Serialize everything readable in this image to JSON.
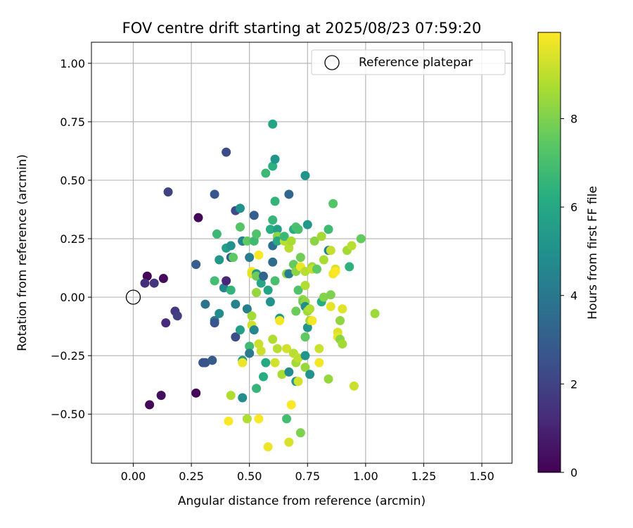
{
  "chart_data": {
    "type": "scatter",
    "title": "FOV centre drift starting at 2025/08/23 07:59:20",
    "xlabel": "Angular distance from reference (arcmin)",
    "ylabel": "Rotation from reference (arcmin)",
    "xlim": [
      -0.18,
      1.63
    ],
    "ylim": [
      -0.71,
      1.09
    ],
    "xticks": [
      "0.00",
      "0.25",
      "0.50",
      "0.75",
      "1.00",
      "1.25",
      "1.50"
    ],
    "xtick_values": [
      0,
      0.25,
      0.5,
      0.75,
      1.0,
      1.25,
      1.5
    ],
    "yticks": [
      "−0.50",
      "−0.25",
      "0.00",
      "0.25",
      "0.50",
      "0.75",
      "1.00"
    ],
    "ytick_values": [
      -0.5,
      -0.25,
      0,
      0.25,
      0.5,
      0.75,
      1.0
    ],
    "grid": true,
    "legend": {
      "position": "top-right",
      "label": "Reference platepar"
    },
    "reference_point": {
      "x": 0,
      "y": 0
    },
    "colorbar": {
      "label": "Hours from first FF file",
      "range": [
        0,
        9.95
      ],
      "ticks": [
        "0",
        "2",
        "4",
        "6",
        "8"
      ],
      "tick_values": [
        0,
        2,
        4,
        6,
        8
      ],
      "colormap": "viridis"
    },
    "points": [
      {
        "x": 0.06,
        "y": 0.09,
        "h": 0.1
      },
      {
        "x": 0.05,
        "y": 0.06,
        "h": 1.3
      },
      {
        "x": 0.09,
        "y": 0.06,
        "h": 1.5
      },
      {
        "x": 0.13,
        "y": 0.08,
        "h": 0.3
      },
      {
        "x": 0.18,
        "y": -0.06,
        "h": 1.6
      },
      {
        "x": 0.19,
        "y": -0.08,
        "h": 1.9
      },
      {
        "x": 0.14,
        "y": -0.11,
        "h": 1.2
      },
      {
        "x": 0.07,
        "y": -0.46,
        "h": 0.2
      },
      {
        "x": 0.12,
        "y": -0.42,
        "h": 0.4
      },
      {
        "x": 0.27,
        "y": -0.41,
        "h": 0.1
      },
      {
        "x": 0.15,
        "y": 0.45,
        "h": 2.0
      },
      {
        "x": 0.28,
        "y": 0.34,
        "h": 0.1
      },
      {
        "x": 0.27,
        "y": 0.14,
        "h": 3.0
      },
      {
        "x": 0.31,
        "y": -0.03,
        "h": 3.8
      },
      {
        "x": 0.3,
        "y": -0.28,
        "h": 2.7
      },
      {
        "x": 0.31,
        "y": -0.28,
        "h": 2.6
      },
      {
        "x": 0.34,
        "y": -0.27,
        "h": 2.9
      },
      {
        "x": 0.35,
        "y": 0.44,
        "h": 2.7
      },
      {
        "x": 0.4,
        "y": 0.62,
        "h": 2.3
      },
      {
        "x": 0.36,
        "y": 0.27,
        "h": 6.7
      },
      {
        "x": 0.37,
        "y": 0.16,
        "h": 5.3
      },
      {
        "x": 0.35,
        "y": 0.07,
        "h": 6.9
      },
      {
        "x": 0.39,
        "y": 0.04,
        "h": 4.5
      },
      {
        "x": 0.4,
        "y": 0.07,
        "h": 1.1
      },
      {
        "x": 0.37,
        "y": -0.07,
        "h": 4.8
      },
      {
        "x": 0.35,
        "y": -0.1,
        "h": 4.1
      },
      {
        "x": 0.35,
        "y": -0.11,
        "h": 2.7
      },
      {
        "x": 0.4,
        "y": 0.21,
        "h": 5.6
      },
      {
        "x": 0.42,
        "y": 0.22,
        "h": 5.0
      },
      {
        "x": 0.42,
        "y": 0.17,
        "h": 3.0
      },
      {
        "x": 0.43,
        "y": 0.17,
        "h": 7.5
      },
      {
        "x": 0.42,
        "y": 0.03,
        "h": 6.5
      },
      {
        "x": 0.44,
        "y": 0.37,
        "h": 2.3
      },
      {
        "x": 0.46,
        "y": 0.38,
        "h": 5.0
      },
      {
        "x": 0.46,
        "y": 0.3,
        "h": 7.3
      },
      {
        "x": 0.47,
        "y": 0.24,
        "h": 1.1
      },
      {
        "x": 0.47,
        "y": 0.24,
        "h": 4.4
      },
      {
        "x": 0.49,
        "y": 0.24,
        "h": 7.5
      },
      {
        "x": 0.44,
        "y": -0.03,
        "h": 4.4
      },
      {
        "x": 0.44,
        "y": -0.17,
        "h": 2.4
      },
      {
        "x": 0.46,
        "y": -0.14,
        "h": 5.6
      },
      {
        "x": 0.47,
        "y": -0.27,
        "h": 5.5
      },
      {
        "x": 0.47,
        "y": -0.28,
        "h": 9.7
      },
      {
        "x": 0.47,
        "y": -0.43,
        "h": 4.8
      },
      {
        "x": 0.42,
        "y": -0.42,
        "h": 8.8
      },
      {
        "x": 0.41,
        "y": -0.53,
        "h": 9.9
      },
      {
        "x": 0.49,
        "y": -0.52,
        "h": 8.8
      },
      {
        "x": 0.5,
        "y": 0.17,
        "h": 4.2
      },
      {
        "x": 0.49,
        "y": -0.05,
        "h": 4.3
      },
      {
        "x": 0.5,
        "y": -0.21,
        "h": 6.8
      },
      {
        "x": 0.5,
        "y": -0.24,
        "h": 4.1
      },
      {
        "x": 0.51,
        "y": 0.11,
        "h": 9.8
      },
      {
        "x": 0.51,
        "y": 0.1,
        "h": 9.5
      },
      {
        "x": 0.51,
        "y": -0.08,
        "h": 8.6
      },
      {
        "x": 0.51,
        "y": -0.12,
        "h": 9.3
      },
      {
        "x": 0.52,
        "y": -0.14,
        "h": 4.6
      },
      {
        "x": 0.52,
        "y": 0.35,
        "h": 3.0
      },
      {
        "x": 0.52,
        "y": 0.24,
        "h": 6.8
      },
      {
        "x": 0.53,
        "y": 0.27,
        "h": 7.2
      },
      {
        "x": 0.53,
        "y": 0.1,
        "h": 5.1
      },
      {
        "x": 0.53,
        "y": 0.09,
        "h": 7.7
      },
      {
        "x": 0.54,
        "y": 0.18,
        "h": 9.9
      },
      {
        "x": 0.53,
        "y": 0.02,
        "h": 8.4
      },
      {
        "x": 0.54,
        "y": -0.2,
        "h": 9.2
      },
      {
        "x": 0.53,
        "y": -0.39,
        "h": 6.6
      },
      {
        "x": 0.54,
        "y": -0.52,
        "h": 9.9
      },
      {
        "x": 0.55,
        "y": 0.06,
        "h": 5.9
      },
      {
        "x": 0.55,
        "y": -0.23,
        "h": 9.2
      },
      {
        "x": 0.56,
        "y": 0.09,
        "h": 3.3
      },
      {
        "x": 0.56,
        "y": -0.34,
        "h": 6.2
      },
      {
        "x": 0.57,
        "y": -0.28,
        "h": 6.0
      },
      {
        "x": 0.57,
        "y": 0.53,
        "h": 6.7
      },
      {
        "x": 0.58,
        "y": 0.03,
        "h": 5.8
      },
      {
        "x": 0.58,
        "y": -0.64,
        "h": 9.7
      },
      {
        "x": 0.59,
        "y": 0.29,
        "h": 6.2
      },
      {
        "x": 0.59,
        "y": -0.02,
        "h": 5.1
      },
      {
        "x": 0.6,
        "y": 0.74,
        "h": 5.8
      },
      {
        "x": 0.6,
        "y": 0.56,
        "h": 6.3
      },
      {
        "x": 0.61,
        "y": 0.59,
        "h": 5.2
      },
      {
        "x": 0.6,
        "y": 0.33,
        "h": 6.6
      },
      {
        "x": 0.6,
        "y": 0.22,
        "h": 3.6
      },
      {
        "x": 0.6,
        "y": 0.15,
        "h": 3.5
      },
      {
        "x": 0.61,
        "y": 0.41,
        "h": 6.5
      },
      {
        "x": 0.61,
        "y": 0.07,
        "h": 7.0
      },
      {
        "x": 0.6,
        "y": -0.18,
        "h": 8.8
      },
      {
        "x": 0.61,
        "y": -0.28,
        "h": 9.3
      },
      {
        "x": 0.62,
        "y": 0.29,
        "h": 5.6
      },
      {
        "x": 0.62,
        "y": 0.26,
        "h": 8.2
      },
      {
        "x": 0.62,
        "y": 0.24,
        "h": 6.0
      },
      {
        "x": 0.62,
        "y": -0.22,
        "h": 8.9
      },
      {
        "x": 0.63,
        "y": -0.09,
        "h": 5.3
      },
      {
        "x": 0.63,
        "y": -0.1,
        "h": 9.8
      },
      {
        "x": 0.64,
        "y": -0.33,
        "h": 8.7
      },
      {
        "x": 0.65,
        "y": 0.24,
        "h": 8.9
      },
      {
        "x": 0.65,
        "y": 0.26,
        "h": 6.7
      },
      {
        "x": 0.66,
        "y": 0.1,
        "h": 8.2
      },
      {
        "x": 0.66,
        "y": -0.22,
        "h": 9.3
      },
      {
        "x": 0.66,
        "y": -0.52,
        "h": 6.9
      },
      {
        "x": 0.67,
        "y": 0.44,
        "h": 3.3
      },
      {
        "x": 0.67,
        "y": 0.21,
        "h": 8.9
      },
      {
        "x": 0.67,
        "y": 0.1,
        "h": 4.2
      },
      {
        "x": 0.67,
        "y": -0.32,
        "h": 4.8
      },
      {
        "x": 0.67,
        "y": -0.62,
        "h": 9.4
      },
      {
        "x": 0.68,
        "y": 0.24,
        "h": 8.7
      },
      {
        "x": 0.68,
        "y": -0.46,
        "h": 9.9
      },
      {
        "x": 0.69,
        "y": 0.29,
        "h": 6.2
      },
      {
        "x": 0.69,
        "y": 0.14,
        "h": 7.6
      },
      {
        "x": 0.69,
        "y": -0.24,
        "h": 8.9
      },
      {
        "x": 0.7,
        "y": 0.3,
        "h": 7.1
      },
      {
        "x": 0.7,
        "y": 0.11,
        "h": 8.2
      },
      {
        "x": 0.7,
        "y": -0.06,
        "h": 7.7
      },
      {
        "x": 0.7,
        "y": -0.28,
        "h": 8.6
      },
      {
        "x": 0.7,
        "y": -0.36,
        "h": 5.3
      },
      {
        "x": 0.71,
        "y": -0.36,
        "h": 9.3
      },
      {
        "x": 0.71,
        "y": 0.29,
        "h": 7.0
      },
      {
        "x": 0.71,
        "y": 0.03,
        "h": 7.2
      },
      {
        "x": 0.71,
        "y": -0.26,
        "h": 9.0
      },
      {
        "x": 0.72,
        "y": 0.17,
        "h": 7.8
      },
      {
        "x": 0.72,
        "y": 0.13,
        "h": 9.7
      },
      {
        "x": 0.72,
        "y": -0.58,
        "h": 8.0
      },
      {
        "x": 0.73,
        "y": -0.01,
        "h": 8.4
      },
      {
        "x": 0.73,
        "y": -0.02,
        "h": 7.7
      },
      {
        "x": 0.74,
        "y": 0.52,
        "h": 5.2
      },
      {
        "x": 0.74,
        "y": 0.11,
        "h": 8.9
      },
      {
        "x": 0.74,
        "y": 0.05,
        "h": 8.8
      },
      {
        "x": 0.74,
        "y": -0.02,
        "h": 8.3
      },
      {
        "x": 0.74,
        "y": -0.04,
        "h": 4.8
      },
      {
        "x": 0.74,
        "y": -0.17,
        "h": 7.5
      },
      {
        "x": 0.74,
        "y": -0.25,
        "h": 5.2
      },
      {
        "x": 0.74,
        "y": -0.3,
        "h": 8.4
      },
      {
        "x": 0.75,
        "y": 0.31,
        "h": 5.3
      },
      {
        "x": 0.75,
        "y": -0.06,
        "h": 8.5
      },
      {
        "x": 0.75,
        "y": -0.13,
        "h": 5.2
      },
      {
        "x": 0.76,
        "y": -0.05,
        "h": 8.8
      },
      {
        "x": 0.76,
        "y": -0.1,
        "h": 8.6
      },
      {
        "x": 0.76,
        "y": -0.33,
        "h": 5.1
      },
      {
        "x": 0.77,
        "y": 0.13,
        "h": 8.5
      },
      {
        "x": 0.77,
        "y": 0.12,
        "h": 9.1
      },
      {
        "x": 0.77,
        "y": -0.1,
        "h": 9.8
      },
      {
        "x": 0.78,
        "y": 0.24,
        "h": 8.2
      },
      {
        "x": 0.79,
        "y": 0.12,
        "h": 7.5
      },
      {
        "x": 0.8,
        "y": -0.28,
        "h": 9.8
      },
      {
        "x": 0.8,
        "y": -0.22,
        "h": 9.2
      },
      {
        "x": 0.81,
        "y": 0.26,
        "h": 8.6
      },
      {
        "x": 0.81,
        "y": -0.02,
        "h": 6.2
      },
      {
        "x": 0.82,
        "y": 0.0,
        "h": 8.1
      },
      {
        "x": 0.82,
        "y": 0.16,
        "h": 8.7
      },
      {
        "x": 0.84,
        "y": 0.29,
        "h": 6.8
      },
      {
        "x": 0.84,
        "y": 0.2,
        "h": 4.5
      },
      {
        "x": 0.85,
        "y": 0.2,
        "h": 9.1
      },
      {
        "x": 0.85,
        "y": 0.01,
        "h": 8.0
      },
      {
        "x": 0.85,
        "y": -0.04,
        "h": 9.6
      },
      {
        "x": 0.84,
        "y": -0.35,
        "h": 8.4
      },
      {
        "x": 0.86,
        "y": 0.4,
        "h": 7.3
      },
      {
        "x": 0.86,
        "y": 0.1,
        "h": 9.8
      },
      {
        "x": 0.87,
        "y": 0.12,
        "h": 9.4
      },
      {
        "x": 0.87,
        "y": 0.11,
        "h": 9.9
      },
      {
        "x": 0.88,
        "y": -0.15,
        "h": 9.4
      },
      {
        "x": 0.88,
        "y": -0.17,
        "h": 9.7
      },
      {
        "x": 0.89,
        "y": -0.1,
        "h": 8.3
      },
      {
        "x": 0.89,
        "y": -0.18,
        "h": 8.2
      },
      {
        "x": 0.9,
        "y": -0.05,
        "h": 9.5
      },
      {
        "x": 0.9,
        "y": -0.2,
        "h": 8.6
      },
      {
        "x": 0.92,
        "y": 0.2,
        "h": 8.6
      },
      {
        "x": 0.93,
        "y": 0.13,
        "h": 6.4
      },
      {
        "x": 0.94,
        "y": 0.22,
        "h": 8.9
      },
      {
        "x": 0.95,
        "y": -0.38,
        "h": 9.2
      },
      {
        "x": 0.98,
        "y": 0.25,
        "h": 7.6
      },
      {
        "x": 1.04,
        "y": -0.07,
        "h": 8.5
      }
    ]
  }
}
